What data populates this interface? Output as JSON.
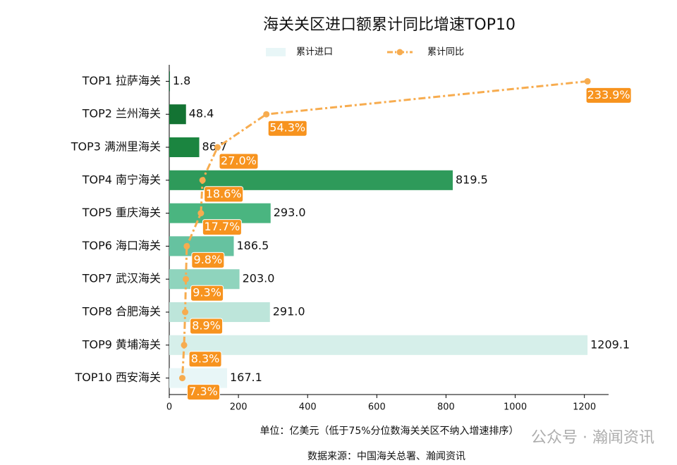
{
  "chart_data": {
    "type": "bar",
    "orientation": "horizontal",
    "title": "海关关区进口额累计同比增速TOP10",
    "categories": [
      "TOP1 拉萨海关",
      "TOP2 兰州海关",
      "TOP3 满洲里海关",
      "TOP4 南宁海关",
      "TOP5 重庆海关",
      "TOP6 海口海关",
      "TOP7 武汉海关",
      "TOP8 合肥海关",
      "TOP9 黄埔海关",
      "TOP10 西安海关"
    ],
    "series": [
      {
        "name": "累计进口",
        "type": "bar",
        "colors": [
          "#00682f",
          "#137333",
          "#1b8540",
          "#2e9a5a",
          "#4ab580",
          "#66c2a0",
          "#8fd4bd",
          "#bde5da",
          "#d6efea",
          "#e8f6f7"
        ],
        "values": [
          1.8,
          48.4,
          86.7,
          819.5,
          293.0,
          186.5,
          203.0,
          291.0,
          1209.1,
          167.1
        ],
        "value_labels": [
          "1.8",
          "48.4",
          "86.7",
          "819.5",
          "293.0",
          "186.5",
          "203.0",
          "291.0",
          "1209.1",
          "167.1"
        ]
      },
      {
        "name": "累计同比",
        "type": "line",
        "axis": "x2",
        "color": "#f7ac4f",
        "label_color": "#f7931e",
        "values": [
          233.9,
          54.3,
          27.0,
          18.6,
          17.7,
          9.8,
          9.3,
          8.9,
          8.3,
          7.3
        ],
        "value_labels": [
          "233.9%",
          "54.3%",
          "27.0%",
          "18.6%",
          "17.7%",
          "9.8%",
          "9.3%",
          "8.9%",
          "8.3%",
          "7.3%"
        ]
      }
    ],
    "xlim": [
      0,
      1270
    ],
    "xticks": [
      0,
      200,
      400,
      600,
      800,
      1000,
      1200
    ],
    "xlabel": "单位：亿美元（低于75%分位数海关关区不纳入增速排序）",
    "source": "数据来源：中国海关总署、瀚闻资讯",
    "watermark": "公众号 · 瀚闻资讯",
    "legend": "top"
  }
}
